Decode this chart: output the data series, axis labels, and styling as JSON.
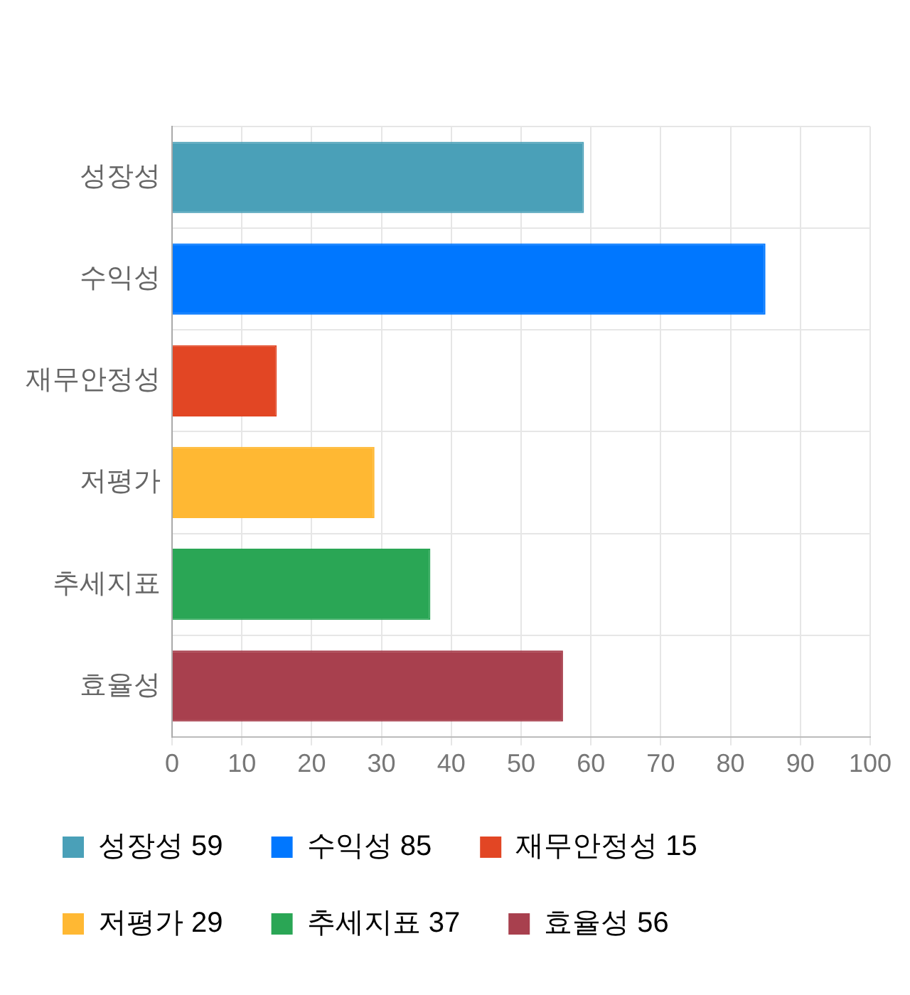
{
  "chart_data": {
    "type": "bar",
    "orientation": "horizontal",
    "categories": [
      "성장성",
      "수익성",
      "재무안정성",
      "저평가",
      "추세지표",
      "효율성"
    ],
    "series": [
      {
        "name": "성장성 59",
        "color": "#4aa0b8",
        "values": [
          59,
          null,
          null,
          null,
          null,
          null
        ]
      },
      {
        "name": "수익성 85",
        "color": "#0077ff",
        "values": [
          null,
          85,
          null,
          null,
          null,
          null
        ]
      },
      {
        "name": "재무안정성 15",
        "color": "#e24624",
        "values": [
          null,
          null,
          15,
          null,
          null,
          null
        ]
      },
      {
        "name": "저평가 29",
        "color": "#ffb833",
        "values": [
          null,
          null,
          null,
          29,
          null,
          null
        ]
      },
      {
        "name": "추세지표 37",
        "color": "#2aa655",
        "values": [
          null,
          null,
          null,
          null,
          37,
          null
        ]
      },
      {
        "name": "효율성 56",
        "color": "#a8404e",
        "values": [
          null,
          null,
          null,
          null,
          null,
          56
        ]
      }
    ],
    "xlim": [
      0,
      100
    ],
    "xticks": [
      0,
      10,
      20,
      30,
      40,
      50,
      60,
      70,
      80,
      90,
      100
    ],
    "grid": true,
    "legend": "bottom"
  }
}
